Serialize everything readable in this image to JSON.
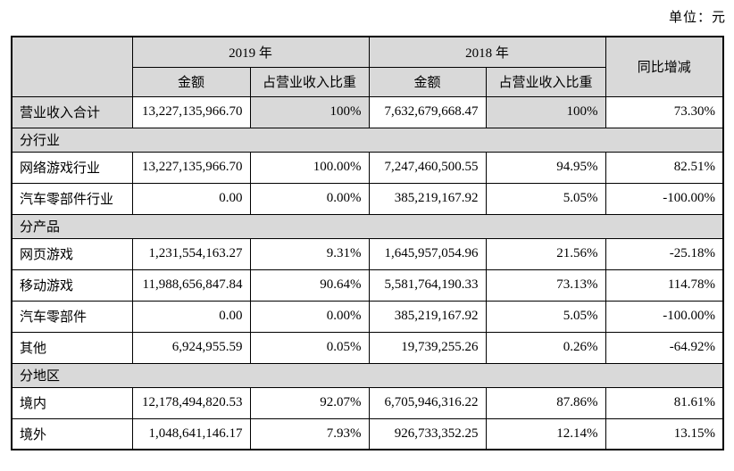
{
  "unit_label": "单位：元",
  "colors": {
    "shaded_bg": "#d9d9d9",
    "border": "#000000",
    "text": "#000000"
  },
  "table": {
    "header": {
      "col_2019": "2019 年",
      "col_2018": "2018 年",
      "col_yoy": "同比增减",
      "amount": "金额",
      "ratio": "占营业收入比重"
    },
    "rows": [
      {
        "type": "data",
        "label": "营业收入合计",
        "shaded": true,
        "cells": [
          "13,227,135,966.70",
          "100%",
          "7,632,679,668.47",
          "100%",
          "73.30%"
        ]
      },
      {
        "type": "section",
        "label": "分行业"
      },
      {
        "type": "data",
        "label": "网络游戏行业",
        "cells": [
          "13,227,135,966.70",
          "100.00%",
          "7,247,460,500.55",
          "94.95%",
          "82.51%"
        ]
      },
      {
        "type": "data",
        "label": "汽车零部件行业",
        "cells": [
          "0.00",
          "0.00%",
          "385,219,167.92",
          "5.05%",
          "-100.00%"
        ]
      },
      {
        "type": "section",
        "label": "分产品"
      },
      {
        "type": "data",
        "label": "网页游戏",
        "cells": [
          "1,231,554,163.27",
          "9.31%",
          "1,645,957,054.96",
          "21.56%",
          "-25.18%"
        ]
      },
      {
        "type": "data",
        "label": "移动游戏",
        "cells": [
          "11,988,656,847.84",
          "90.64%",
          "5,581,764,190.33",
          "73.13%",
          "114.78%"
        ]
      },
      {
        "type": "data",
        "label": "汽车零部件",
        "cells": [
          "0.00",
          "0.00%",
          "385,219,167.92",
          "5.05%",
          "-100.00%"
        ]
      },
      {
        "type": "data",
        "label": "其他",
        "cells": [
          "6,924,955.59",
          "0.05%",
          "19,739,255.26",
          "0.26%",
          "-64.92%"
        ]
      },
      {
        "type": "section",
        "label": "分地区"
      },
      {
        "type": "data",
        "label": "境内",
        "cells": [
          "12,178,494,820.53",
          "92.07%",
          "6,705,946,316.22",
          "87.86%",
          "81.61%"
        ]
      },
      {
        "type": "data",
        "label": "境外",
        "cells": [
          "1,048,641,146.17",
          "7.93%",
          "926,733,352.25",
          "12.14%",
          "13.15%"
        ]
      }
    ]
  }
}
